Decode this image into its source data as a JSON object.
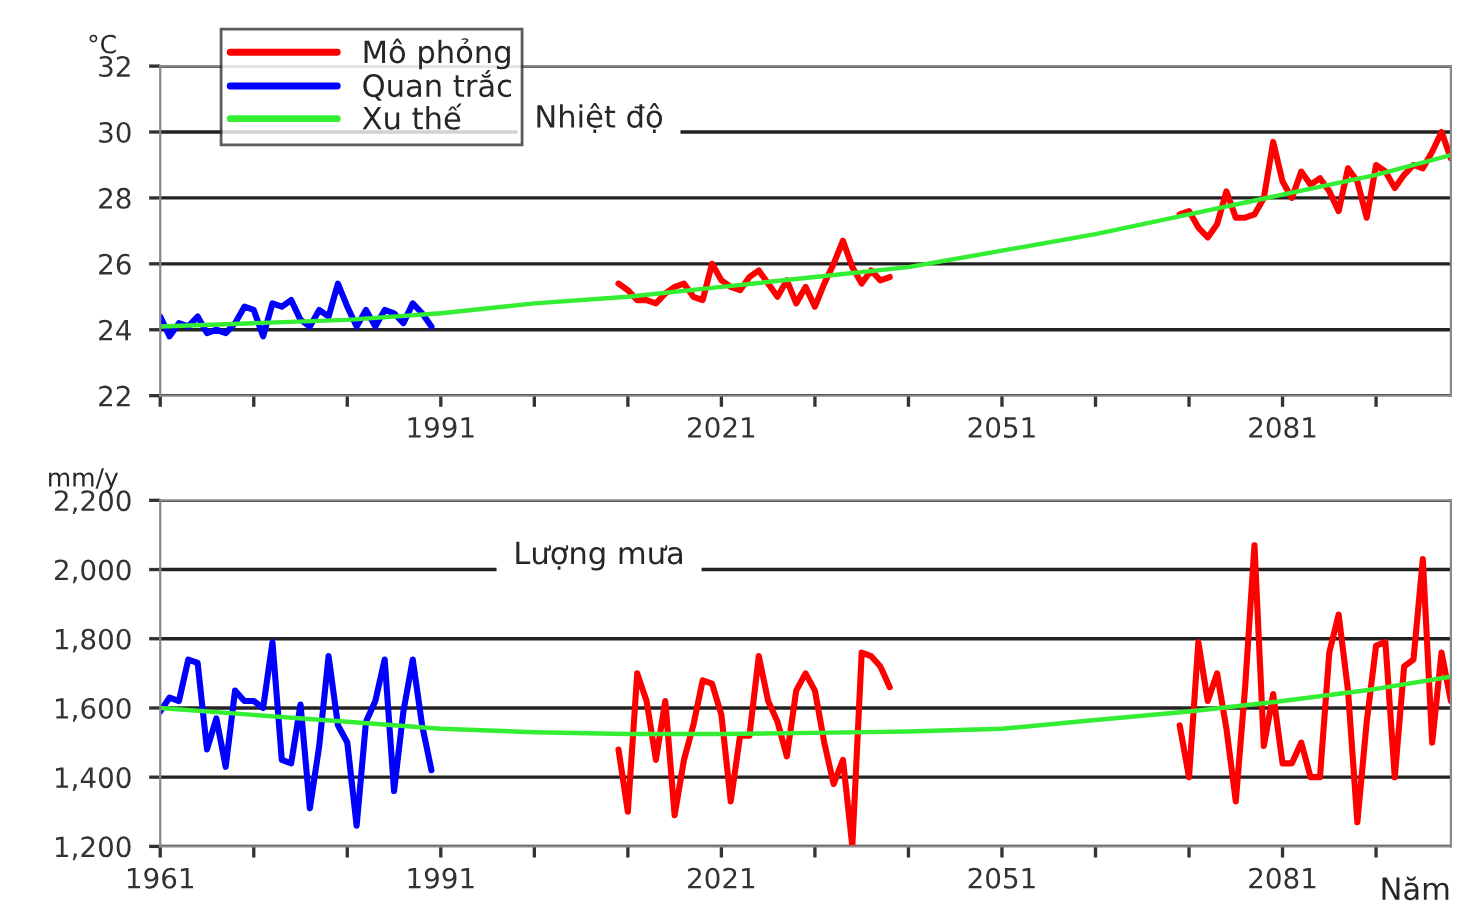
{
  "chart_data": [
    {
      "type": "line",
      "title": "Nhiệt độ",
      "ylabel": "°C",
      "xlim": [
        1961,
        2099
      ],
      "ylim": [
        22,
        32
      ],
      "yticks": [
        22,
        24,
        26,
        28,
        30,
        32
      ],
      "xticks": [
        {
          "value": 1961,
          "label": null
        },
        {
          "value": 1971,
          "label": null
        },
        {
          "value": 1981,
          "label": null
        },
        1991,
        {
          "value": 2001,
          "label": null
        },
        {
          "value": 2011,
          "label": null
        },
        2021,
        {
          "value": 2031,
          "label": null
        },
        {
          "value": 2041,
          "label": null
        },
        2051,
        {
          "value": 2061,
          "label": null
        },
        {
          "value": 2071,
          "label": null
        },
        2081,
        {
          "value": 2091,
          "label": null
        }
      ],
      "grid": "y",
      "legend": "top left",
      "series": [
        {
          "name": "Mô phỏng",
          "color": "#ff0000",
          "x": [
            2010,
            2011,
            2012,
            2013,
            2014,
            2015,
            2016,
            2017,
            2018,
            2019,
            2020,
            2021,
            2022,
            2023,
            2024,
            2025,
            2026,
            2027,
            2028,
            2029,
            2030,
            2031,
            2032,
            2033,
            2034,
            2035,
            2036,
            2037,
            2038,
            2039
          ],
          "values": [
            25.4,
            25.2,
            24.9,
            24.9,
            24.8,
            25.1,
            25.3,
            25.4,
            25.0,
            24.9,
            26.0,
            25.5,
            25.3,
            25.2,
            25.6,
            25.8,
            25.4,
            25.0,
            25.5,
            24.8,
            25.3,
            24.7,
            25.4,
            26.0,
            26.7,
            25.9,
            25.4,
            25.8,
            25.5,
            25.6
          ]
        },
        {
          "color": "#ff0000",
          "x": [
            2070,
            2071,
            2072,
            2073,
            2074,
            2075,
            2076,
            2077,
            2078,
            2079,
            2080,
            2081,
            2082,
            2083,
            2084,
            2085,
            2086,
            2087,
            2088,
            2089,
            2090,
            2091,
            2092,
            2093,
            2094,
            2095,
            2096,
            2097,
            2098,
            2099
          ],
          "values": [
            27.5,
            27.6,
            27.1,
            26.8,
            27.2,
            28.2,
            27.4,
            27.4,
            27.5,
            28.0,
            29.7,
            28.5,
            28.0,
            28.8,
            28.4,
            28.6,
            28.2,
            27.6,
            28.9,
            28.5,
            27.4,
            29.0,
            28.8,
            28.3,
            28.7,
            29.0,
            28.9,
            29.4,
            30.0,
            29.2
          ]
        },
        {
          "name": "Quan trắc",
          "color": "#0000ff",
          "x": [
            1961,
            1962,
            1963,
            1964,
            1965,
            1966,
            1967,
            1968,
            1969,
            1970,
            1971,
            1972,
            1973,
            1974,
            1975,
            1976,
            1977,
            1978,
            1979,
            1980,
            1981,
            1982,
            1983,
            1984,
            1985,
            1986,
            1987,
            1988,
            1989,
            1990
          ],
          "values": [
            24.4,
            23.8,
            24.2,
            24.1,
            24.4,
            23.9,
            24.0,
            23.9,
            24.2,
            24.7,
            24.6,
            23.8,
            24.8,
            24.7,
            24.9,
            24.3,
            24.1,
            24.6,
            24.4,
            25.4,
            24.7,
            24.1,
            24.6,
            24.1,
            24.6,
            24.5,
            24.2,
            24.8,
            24.5,
            24.1
          ]
        },
        {
          "name": "Xu thế",
          "color": "#33ee33",
          "x": [
            1961,
            1971,
            1981,
            1991,
            2001,
            2011,
            2021,
            2031,
            2041,
            2051,
            2061,
            2071,
            2081,
            2091,
            2099
          ],
          "values": [
            24.1,
            24.2,
            24.3,
            24.5,
            24.8,
            25.0,
            25.3,
            25.6,
            25.9,
            26.4,
            26.9,
            27.5,
            28.1,
            28.7,
            29.3
          ]
        }
      ]
    },
    {
      "type": "line",
      "title": "Lượng mưa",
      "ylabel": "mm/y",
      "xlabel": "Năm",
      "xlim": [
        1961,
        2099
      ],
      "ylim": [
        1200,
        2200
      ],
      "yticks": [
        {
          "value": 1200,
          "label": "1,200"
        },
        {
          "value": 1400,
          "label": "1,400"
        },
        {
          "value": 1600,
          "label": "1,600"
        },
        {
          "value": 1800,
          "label": "1,800"
        },
        {
          "value": 2000,
          "label": "2,000"
        },
        {
          "value": 2200,
          "label": "2,200"
        }
      ],
      "xticks": [
        1961,
        {
          "value": 1971,
          "label": null
        },
        {
          "value": 1981,
          "label": null
        },
        1991,
        {
          "value": 2001,
          "label": null
        },
        {
          "value": 2011,
          "label": null
        },
        2021,
        {
          "value": 2031,
          "label": null
        },
        {
          "value": 2041,
          "label": null
        },
        2051,
        {
          "value": 2061,
          "label": null
        },
        {
          "value": 2071,
          "label": null
        },
        2081,
        {
          "value": 2091,
          "label": null
        }
      ],
      "grid": "y",
      "series": [
        {
          "color": "#ff0000",
          "x": [
            2010,
            2011,
            2012,
            2013,
            2014,
            2015,
            2016,
            2017,
            2018,
            2019,
            2020,
            2021,
            2022,
            2023,
            2024,
            2025,
            2026,
            2027,
            2028,
            2029,
            2030,
            2031,
            2032,
            2033,
            2034,
            2035,
            2036,
            2037,
            2038,
            2039
          ],
          "values": [
            1480,
            1300,
            1700,
            1620,
            1450,
            1620,
            1290,
            1450,
            1550,
            1680,
            1670,
            1580,
            1330,
            1520,
            1520,
            1750,
            1620,
            1560,
            1460,
            1650,
            1700,
            1650,
            1500,
            1380,
            1450,
            1200,
            1760,
            1750,
            1720,
            1660
          ]
        },
        {
          "color": "#ff0000",
          "x": [
            2070,
            2071,
            2072,
            2073,
            2074,
            2075,
            2076,
            2077,
            2078,
            2079,
            2080,
            2081,
            2082,
            2083,
            2084,
            2085,
            2086,
            2087,
            2088,
            2089,
            2090,
            2091,
            2092,
            2093,
            2094,
            2095,
            2096,
            2097,
            2098,
            2099
          ],
          "values": [
            1550,
            1400,
            1790,
            1620,
            1700,
            1540,
            1330,
            1660,
            2070,
            1490,
            1640,
            1440,
            1440,
            1500,
            1400,
            1400,
            1760,
            1870,
            1650,
            1270,
            1560,
            1780,
            1790,
            1400,
            1720,
            1740,
            2030,
            1500,
            1760,
            1620
          ]
        },
        {
          "color": "#0000ff",
          "x": [
            1961,
            1962,
            1963,
            1964,
            1965,
            1966,
            1967,
            1968,
            1969,
            1970,
            1971,
            1972,
            1973,
            1974,
            1975,
            1976,
            1977,
            1978,
            1979,
            1980,
            1981,
            1982,
            1983,
            1984,
            1985,
            1986,
            1987,
            1988,
            1989,
            1990
          ],
          "values": [
            1590,
            1630,
            1620,
            1740,
            1730,
            1480,
            1570,
            1430,
            1650,
            1620,
            1620,
            1600,
            1790,
            1450,
            1440,
            1610,
            1310,
            1490,
            1750,
            1550,
            1500,
            1260,
            1560,
            1620,
            1740,
            1360,
            1590,
            1740,
            1550,
            1420
          ]
        },
        {
          "color": "#33ee33",
          "x": [
            1961,
            1971,
            1981,
            1991,
            2001,
            2011,
            2021,
            2031,
            2041,
            2051,
            2061,
            2071,
            2081,
            2091,
            2099
          ],
          "values": [
            1600,
            1580,
            1560,
            1540,
            1530,
            1525,
            1525,
            1528,
            1532,
            1540,
            1565,
            1590,
            1620,
            1655,
            1690
          ]
        }
      ]
    }
  ]
}
